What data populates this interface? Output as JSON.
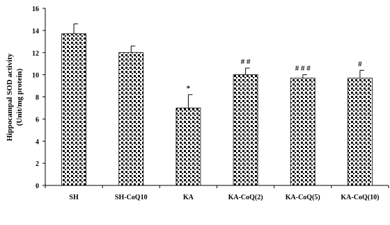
{
  "chart_data": {
    "type": "bar",
    "categories": [
      "SH",
      "SH-CoQ10",
      "KA",
      "KA-CoQ(2)",
      "KA-CoQ(5)",
      "KA-CoQ(10)"
    ],
    "values": [
      13.7,
      12.0,
      7.0,
      10.0,
      9.7,
      9.7
    ],
    "errors": [
      0.9,
      0.6,
      1.2,
      0.6,
      0.3,
      0.7
    ],
    "annotations": [
      "",
      "",
      "*",
      "# #",
      "# # #",
      "#"
    ],
    "ylabel_line1": "Hippocampal SOD activity",
    "ylabel_line2": "(Unit/mg protein)",
    "ylim": [
      0,
      16
    ],
    "yticks": [
      0,
      2,
      4,
      6,
      8,
      10,
      12,
      14,
      16
    ],
    "bar_pattern": "dotted",
    "grid": false,
    "legend": "none"
  }
}
